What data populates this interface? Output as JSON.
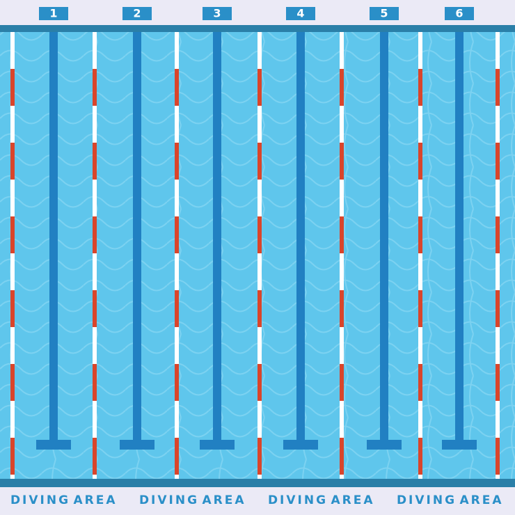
{
  "lanes": [
    "1",
    "2",
    "3",
    "4",
    "5",
    "6"
  ],
  "footer": [
    [
      "DIVING",
      "AREA"
    ],
    [
      "DIVING",
      "AREA"
    ],
    [
      "DIVING",
      "AREA"
    ],
    [
      "DIVING",
      "AREA"
    ]
  ]
}
